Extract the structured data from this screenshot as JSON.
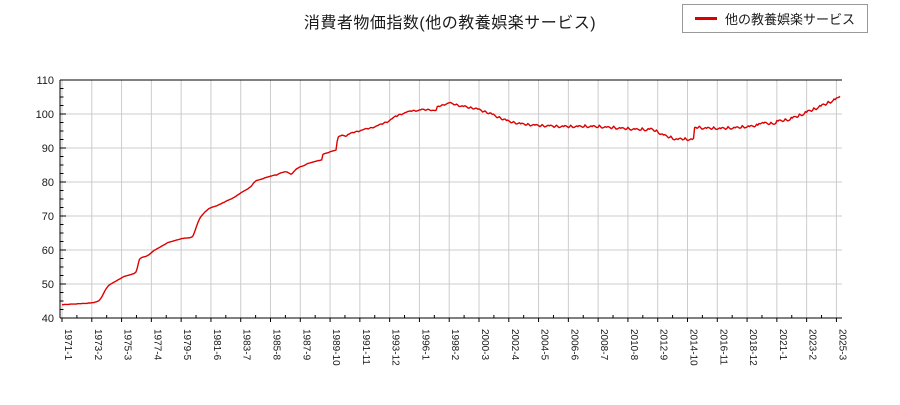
{
  "header": {
    "title": "消費者物価指数(他の教養娯楽サービス)"
  },
  "legend": {
    "label": "他の教養娯楽サービス"
  },
  "colors": {
    "series_line": "#dd0000",
    "grid": "#cccccc",
    "axis": "#000000",
    "background": "#ffffff",
    "legend_border": "#999999"
  },
  "chart_data": {
    "type": "line",
    "title": "消費者物価指数(他の教養娯楽サービス)",
    "xlabel": "",
    "ylabel": "",
    "grid": true,
    "legend_position": "top-right",
    "y_axis": {
      "min": 40,
      "max": 110,
      "tick_step": 10,
      "minor_tick_step": 2.5,
      "tick_labels": [
        "40",
        "50",
        "60",
        "70",
        "80",
        "90",
        "100",
        "110"
      ]
    },
    "x_ticks": {
      "every_n_points": 25,
      "labels": [
        "1971-1",
        "1973-2",
        "1975-3",
        "1977-4",
        "1979-5",
        "1981-6",
        "1983-7",
        "1985-8",
        "1987-9",
        "1989-10",
        "1991-11",
        "1993-12",
        "1996-1",
        "1998-2",
        "2000-3",
        "2002-4",
        "2004-5",
        "2006-6",
        "2008-7",
        "2010-8",
        "2012-9",
        "2014-10",
        "2016-11",
        "2018-12",
        "2021-1",
        "2023-2",
        "2025-3"
      ]
    },
    "series": [
      {
        "name": "他の教養娯楽サービス",
        "color": "#dd0000",
        "start_year": 1971,
        "start_month": 1,
        "frequency": "monthly",
        "values": [
          43.9,
          43.9,
          44.0,
          44.0,
          44.0,
          44.0,
          44.0,
          44.1,
          44.1,
          44.1,
          44.1,
          44.1,
          44.1,
          44.2,
          44.2,
          44.2,
          44.2,
          44.3,
          44.3,
          44.3,
          44.3,
          44.3,
          44.4,
          44.4,
          44.4,
          44.5,
          44.5,
          44.6,
          44.7,
          44.8,
          44.9,
          45.1,
          45.5,
          46.0,
          46.6,
          47.3,
          48.0,
          48.6,
          49.1,
          49.5,
          49.8,
          50.0,
          50.2,
          50.4,
          50.6,
          50.8,
          51.0,
          51.2,
          51.4,
          51.6,
          51.8,
          52.0,
          52.2,
          52.3,
          52.4,
          52.5,
          52.6,
          52.7,
          52.8,
          52.9,
          53.0,
          53.2,
          53.5,
          54.5,
          56.0,
          57.2,
          57.6,
          57.8,
          57.9,
          58.0,
          58.1,
          58.2,
          58.4,
          58.6,
          58.9,
          59.2,
          59.5,
          59.8,
          60.0,
          60.2,
          60.4,
          60.6,
          60.8,
          61.0,
          61.2,
          61.4,
          61.6,
          61.8,
          62.0,
          62.2,
          62.3,
          62.4,
          62.5,
          62.6,
          62.7,
          62.8,
          62.9,
          63.0,
          63.1,
          63.2,
          63.3,
          63.4,
          63.4,
          63.5,
          63.5,
          63.5,
          63.6,
          63.6,
          63.7,
          63.8,
          64.2,
          65.0,
          66.0,
          67.0,
          68.0,
          68.8,
          69.5,
          70.0,
          70.4,
          70.8,
          71.2,
          71.5,
          71.8,
          72.1,
          72.3,
          72.4,
          72.6,
          72.7,
          72.8,
          72.9,
          73.0,
          73.2,
          73.4,
          73.5,
          73.7,
          73.9,
          74.0,
          74.2,
          74.4,
          74.6,
          74.7,
          74.9,
          75.0,
          75.2,
          75.4,
          75.6,
          75.8,
          76.1,
          76.3,
          76.5,
          76.8,
          77.0,
          77.2,
          77.4,
          77.6,
          77.8,
          78.0,
          78.3,
          78.5,
          78.8,
          79.3,
          79.8,
          80.1,
          80.4,
          80.5,
          80.6,
          80.7,
          80.8,
          80.9,
          81.0,
          81.2,
          81.3,
          81.4,
          81.5,
          81.6,
          81.7,
          81.8,
          81.9,
          82.0,
          82.1,
          82.0,
          82.2,
          82.4,
          82.6,
          82.7,
          82.8,
          82.9,
          83.0,
          83.0,
          82.9,
          82.7,
          82.5,
          82.3,
          82.4,
          82.8,
          83.2,
          83.6,
          83.9,
          84.1,
          84.3,
          84.5,
          84.6,
          84.7,
          84.8,
          85.0,
          85.2,
          85.4,
          85.5,
          85.6,
          85.7,
          85.8,
          85.9,
          86.0,
          86.1,
          86.2,
          86.3,
          86.3,
          86.4,
          86.5,
          88.1,
          88.3,
          88.4,
          88.5,
          88.6,
          88.7,
          88.9,
          89.0,
          89.1,
          89.2,
          89.3,
          89.4,
          92.0,
          93.3,
          93.5,
          93.6,
          93.8,
          93.7,
          93.6,
          93.4,
          93.6,
          94.0,
          94.1,
          94.3,
          94.5,
          94.6,
          94.5,
          94.7,
          94.9,
          94.9,
          94.8,
          95.0,
          95.2,
          95.3,
          95.4,
          95.6,
          95.7,
          95.7,
          95.6,
          95.8,
          96.0,
          96.0,
          95.9,
          96.1,
          96.3,
          96.5,
          96.6,
          96.8,
          97.0,
          97.1,
          97.0,
          97.3,
          97.6,
          97.6,
          97.5,
          97.8,
          98.1,
          98.4,
          98.6,
          98.9,
          99.2,
          99.4,
          99.3,
          99.6,
          99.9,
          99.9,
          99.8,
          100.0,
          100.2,
          100.4,
          100.5,
          100.7,
          100.8,
          100.9,
          100.8,
          100.9,
          101.1,
          101.0,
          100.8,
          100.9,
          101.0,
          101.2,
          101.2,
          101.4,
          101.4,
          101.3,
          101.1,
          101.2,
          101.4,
          101.3,
          101.1,
          101.0,
          101.1,
          101.1,
          101.0,
          101.1,
          102.2,
          102.3,
          102.2,
          102.4,
          102.7,
          102.7,
          102.6,
          102.8,
          103.0,
          103.2,
          103.3,
          103.4,
          103.2,
          103.0,
          102.7,
          102.7,
          102.9,
          102.7,
          102.3,
          102.2,
          102.3,
          102.4,
          102.2,
          102.4,
          102.3,
          102.0,
          101.7,
          101.8,
          102.1,
          101.8,
          101.5,
          101.5,
          101.7,
          101.7,
          101.4,
          101.5,
          101.3,
          101.0,
          100.6,
          100.7,
          100.9,
          100.6,
          100.2,
          100.1,
          100.3,
          100.3,
          99.9,
          100.0,
          99.7,
          99.3,
          98.9,
          99.0,
          99.2,
          98.9,
          98.4,
          98.3,
          98.5,
          98.5,
          98.1,
          98.2,
          98.0,
          97.7,
          97.4,
          97.5,
          97.8,
          97.5,
          97.1,
          97.1,
          97.3,
          97.4,
          97.1,
          97.3,
          97.2,
          97.0,
          96.7,
          96.8,
          97.2,
          96.9,
          96.5,
          96.6,
          96.8,
          96.9,
          96.7,
          96.9,
          96.8,
          96.6,
          96.3,
          96.5,
          96.9,
          96.6,
          96.2,
          96.3,
          96.5,
          96.7,
          96.5,
          96.7,
          96.6,
          96.4,
          96.1,
          96.3,
          96.7,
          96.4,
          96.0,
          96.1,
          96.3,
          96.5,
          96.3,
          96.6,
          96.5,
          96.3,
          96.0,
          96.2,
          96.7,
          96.3,
          96.0,
          96.1,
          96.3,
          96.5,
          96.3,
          96.6,
          96.5,
          96.3,
          96.1,
          96.2,
          96.8,
          96.4,
          96.0,
          96.1,
          96.3,
          96.5,
          96.3,
          96.6,
          96.5,
          96.2,
          96.0,
          96.1,
          96.7,
          96.3,
          95.9,
          95.9,
          96.1,
          96.3,
          96.1,
          96.3,
          96.2,
          96.0,
          95.7,
          95.9,
          96.4,
          96.0,
          95.6,
          95.6,
          95.8,
          96.0,
          95.8,
          96.0,
          95.9,
          95.7,
          95.4,
          95.6,
          96.1,
          95.7,
          95.3,
          95.3,
          95.5,
          95.7,
          95.5,
          95.7,
          95.6,
          95.4,
          95.2,
          95.3,
          95.9,
          95.5,
          95.1,
          95.1,
          95.3,
          95.7,
          95.5,
          95.8,
          95.7,
          95.4,
          95.0,
          94.9,
          95.3,
          94.8,
          94.2,
          94.0,
          94.1,
          94.1,
          93.8,
          93.9,
          93.7,
          93.4,
          93.0,
          93.1,
          93.5,
          93.0,
          92.5,
          92.4,
          92.6,
          92.7,
          92.5,
          92.8,
          92.9,
          92.7,
          92.4,
          92.5,
          93.0,
          92.6,
          92.2,
          92.3,
          92.5,
          92.7,
          92.5,
          92.8,
          96.0,
          96.1,
          95.8,
          96.0,
          96.4,
          96.0,
          95.6,
          95.6,
          95.8,
          96.0,
          95.8,
          96.1,
          96.0,
          95.8,
          95.5,
          95.7,
          96.2,
          95.8,
          95.5,
          95.5,
          95.7,
          95.9,
          95.7,
          96.0,
          96.0,
          95.8,
          95.5,
          95.7,
          96.3,
          95.9,
          95.6,
          95.6,
          95.8,
          96.1,
          95.9,
          96.2,
          96.2,
          96.0,
          95.8,
          96.0,
          96.6,
          96.2,
          95.9,
          96.0,
          96.2,
          96.5,
          96.3,
          96.6,
          96.6,
          96.4,
          96.2,
          96.4,
          97.0,
          96.7,
          97.2,
          97.1,
          97.3,
          97.5,
          97.3,
          97.6,
          97.5,
          97.2,
          96.9,
          97.0,
          97.6,
          97.2,
          97.0,
          97.0,
          97.2,
          98.1,
          97.9,
          98.2,
          98.2,
          98.0,
          97.8,
          98.0,
          98.6,
          98.3,
          98.0,
          98.1,
          98.3,
          99.0,
          98.8,
          99.2,
          99.3,
          99.2,
          99.0,
          99.3,
          100.0,
          99.7,
          99.5,
          99.7,
          100.1,
          100.7,
          100.5,
          101.0,
          101.1,
          101.0,
          100.8,
          101.1,
          101.8,
          101.5,
          101.3,
          101.6,
          102.0,
          102.5,
          102.3,
          102.8,
          102.9,
          102.8,
          102.6,
          103.0,
          103.7,
          103.4,
          103.2,
          103.5,
          103.9,
          104.4,
          104.2,
          104.7,
          104.8,
          104.9,
          105.2
        ]
      }
    ]
  }
}
